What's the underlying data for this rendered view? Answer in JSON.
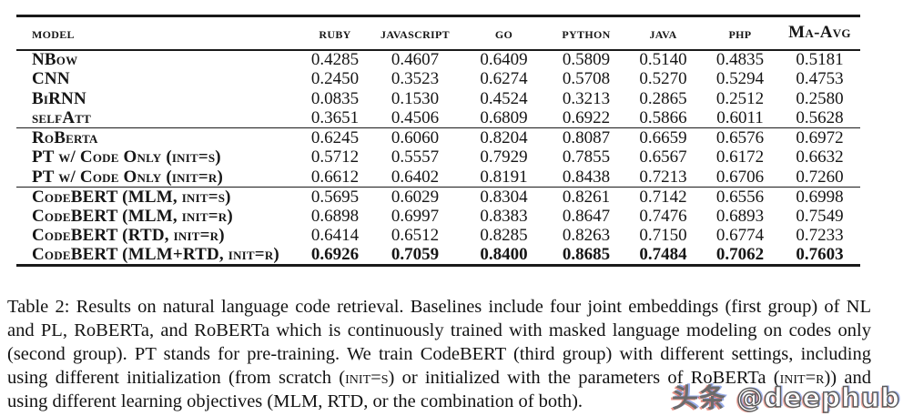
{
  "table": {
    "columns": [
      {
        "key": "model",
        "label": "model"
      },
      {
        "key": "ruby",
        "label": "ruby"
      },
      {
        "key": "javascript",
        "label": "javascript"
      },
      {
        "key": "go",
        "label": "go"
      },
      {
        "key": "python",
        "label": "python"
      },
      {
        "key": "java",
        "label": "java"
      },
      {
        "key": "php",
        "label": "php"
      },
      {
        "key": "maavg",
        "label": "Ma-Avg"
      }
    ],
    "groups": [
      {
        "rows": [
          {
            "model": "NBow",
            "values": [
              "0.4285",
              "0.4607",
              "0.6409",
              "0.5809",
              "0.5140",
              "0.4835",
              "0.5181"
            ]
          },
          {
            "model": "CNN",
            "values": [
              "0.2450",
              "0.3523",
              "0.6274",
              "0.5708",
              "0.5270",
              "0.5294",
              "0.4753"
            ]
          },
          {
            "model": "BiRNN",
            "values": [
              "0.0835",
              "0.1530",
              "0.4524",
              "0.3213",
              "0.2865",
              "0.2512",
              "0.2580"
            ]
          },
          {
            "model": "selfAtt",
            "values": [
              "0.3651",
              "0.4506",
              "0.6809",
              "0.6922",
              "0.5866",
              "0.6011",
              "0.5628"
            ]
          }
        ]
      },
      {
        "rows": [
          {
            "model": "RoBerta",
            "values": [
              "0.6245",
              "0.6060",
              "0.8204",
              "0.8087",
              "0.6659",
              "0.6576",
              "0.6972"
            ]
          },
          {
            "model": "PT w/ Code Only (init=s)",
            "values": [
              "0.5712",
              "0.5557",
              "0.7929",
              "0.7855",
              "0.6567",
              "0.6172",
              "0.6632"
            ]
          },
          {
            "model": "PT w/ Code Only (init=r)",
            "values": [
              "0.6612",
              "0.6402",
              "0.8191",
              "0.8438",
              "0.7213",
              "0.6706",
              "0.7260"
            ]
          }
        ]
      },
      {
        "rows": [
          {
            "model": "CodeBERT (MLM, init=s)",
            "values": [
              "0.5695",
              "0.6029",
              "0.8304",
              "0.8261",
              "0.7142",
              "0.6556",
              "0.6998"
            ]
          },
          {
            "model": "CodeBERT (MLM, init=r)",
            "values": [
              "0.6898",
              "0.6997",
              "0.8383",
              "0.8647",
              "0.7476",
              "0.6893",
              "0.7549"
            ]
          },
          {
            "model": "CodeBERT (RTD, init=r)",
            "values": [
              "0.6414",
              "0.6512",
              "0.8285",
              "0.8263",
              "0.7150",
              "0.6774",
              "0.7233"
            ]
          },
          {
            "model": "CodeBERT (MLM+RTD, init=r)",
            "values": [
              "0.6926",
              "0.7059",
              "0.8400",
              "0.8685",
              "0.7484",
              "0.7062",
              "0.7603"
            ],
            "bold": true
          }
        ]
      }
    ]
  },
  "caption": {
    "segments": [
      {
        "text": "Table 2: Results on natural language code retrieval. Baselines include four joint embeddings (first group) of NL and PL, RoBERTa, and RoBERTa which is continuously trained with masked language modeling on codes only (second group). PT stands for pre-training. We train CodeBERT (third group) with different settings, including using different initialization (from scratch (",
        "style": "normal"
      },
      {
        "text": "init=s",
        "style": "smallcaps"
      },
      {
        "text": ") or initialized with the parameters of RoBERTa (",
        "style": "normal"
      },
      {
        "text": "init=r",
        "style": "smallcaps"
      },
      {
        "text": ")) and using different learning objectives (MLM, RTD, or the combination of both).",
        "style": "normal"
      }
    ]
  },
  "watermark": {
    "cn": "头条",
    "handle": "@deephub"
  },
  "colors": {
    "text": "#161616",
    "rule": "#1a1a1a",
    "background": "#ffffff"
  }
}
